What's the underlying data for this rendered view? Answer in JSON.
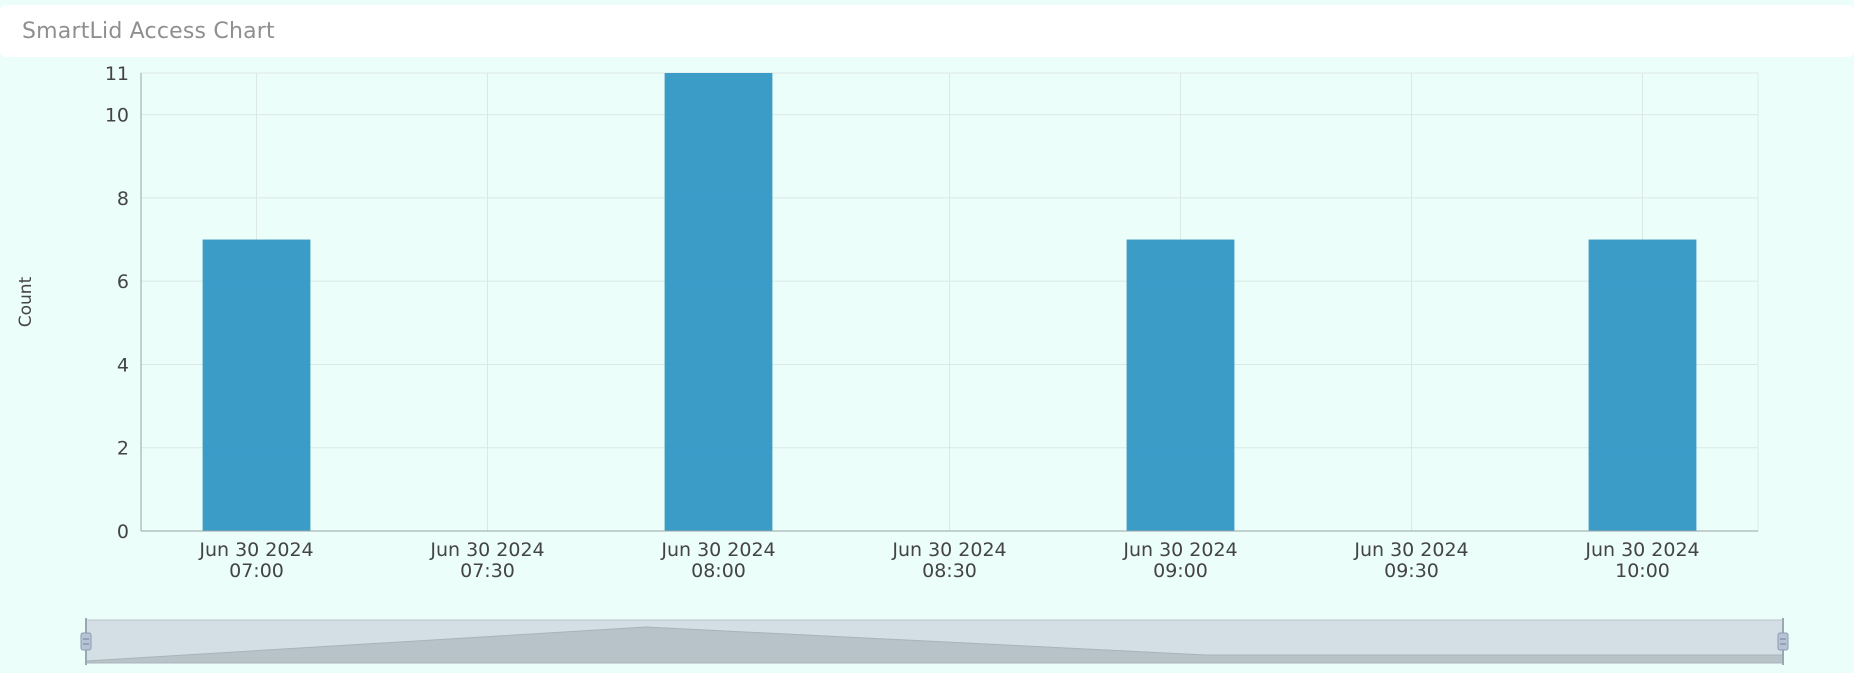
{
  "header": {
    "title": "SmartLid Access Chart"
  },
  "chart_data": {
    "type": "bar",
    "ylabel": "Count",
    "xlabel": "",
    "ylim": [
      0,
      11
    ],
    "yticks": [
      0,
      2,
      4,
      6,
      8,
      10,
      11
    ],
    "x_range": [
      "2024-06-30 06:45",
      "2024-06-30 10:00"
    ],
    "x_ticks": [
      {
        "t": "2024-06-30 07:00",
        "date": "Jun 30 2024",
        "time": "07:00"
      },
      {
        "t": "2024-06-30 07:30",
        "date": "Jun 30 2024",
        "time": "07:30"
      },
      {
        "t": "2024-06-30 08:00",
        "date": "Jun 30 2024",
        "time": "08:00"
      },
      {
        "t": "2024-06-30 08:30",
        "date": "Jun 30 2024",
        "time": "08:30"
      },
      {
        "t": "2024-06-30 09:00",
        "date": "Jun 30 2024",
        "time": "09:00"
      },
      {
        "t": "2024-06-30 09:30",
        "date": "Jun 30 2024",
        "time": "09:30"
      },
      {
        "t": "2024-06-30 10:00",
        "date": "Jun 30 2024",
        "time": "10:00"
      }
    ],
    "bars": [
      {
        "t": "2024-06-30 07:00",
        "value": 7
      },
      {
        "t": "2024-06-30 08:00",
        "value": 11
      },
      {
        "t": "2024-06-30 09:00",
        "value": 7
      },
      {
        "t": "2024-06-30 10:00",
        "value": 7
      }
    ],
    "bar_color": "#2b94c3",
    "grid": true,
    "zoom_slider": true
  }
}
